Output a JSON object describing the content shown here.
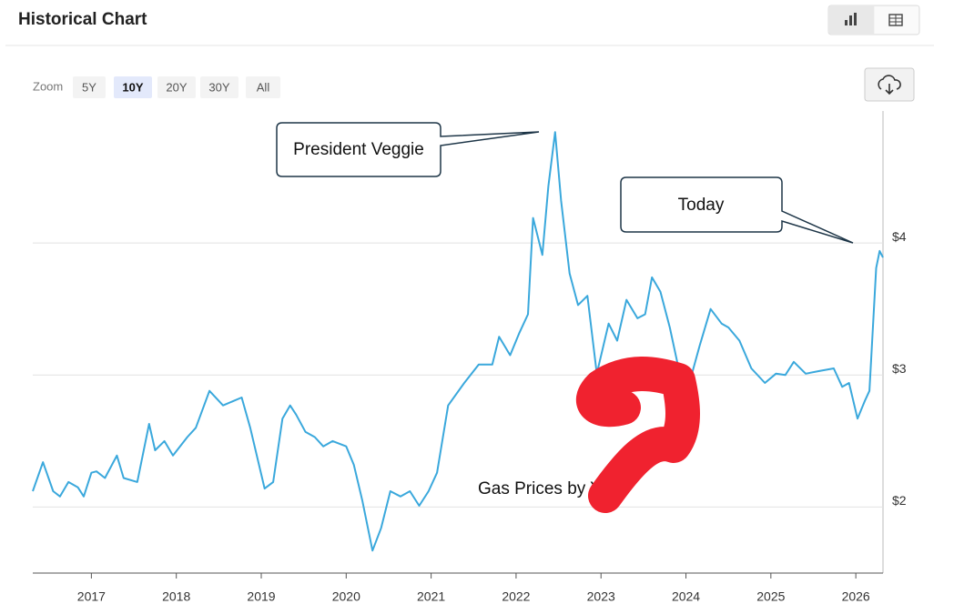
{
  "header": {
    "title": "Historical Chart"
  },
  "zoom": {
    "label": "Zoom",
    "options": [
      "5Y",
      "10Y",
      "20Y",
      "30Y",
      "All"
    ],
    "selected": "10Y"
  },
  "chart_data": {
    "type": "line",
    "annotations": [
      "President Veggie",
      "Today",
      "Gas Prices by Year"
    ],
    "x": [
      2016.31,
      2016.43,
      2016.55,
      2016.63,
      2016.73,
      2016.84,
      2016.91,
      2017.0,
      2017.06,
      2017.16,
      2017.3,
      2017.38,
      2017.54,
      2017.68,
      2017.75,
      2017.86,
      2017.96,
      2018.13,
      2018.23,
      2018.39,
      2018.55,
      2018.77,
      2018.87,
      2019.04,
      2019.14,
      2019.25,
      2019.34,
      2019.41,
      2019.52,
      2019.63,
      2019.73,
      2019.84,
      2020.0,
      2020.09,
      2020.19,
      2020.31,
      2020.41,
      2020.52,
      2020.64,
      2020.75,
      2020.86,
      2020.97,
      2021.07,
      2021.2,
      2021.39,
      2021.56,
      2021.72,
      2021.8,
      2021.93,
      2022.04,
      2022.14,
      2022.2,
      2022.31,
      2022.38,
      2022.46,
      2022.53,
      2022.63,
      2022.73,
      2022.84,
      2022.95,
      2023.09,
      2023.19,
      2023.3,
      2023.43,
      2023.52,
      2023.6,
      2023.7,
      2023.81,
      2023.95,
      2024.04,
      2024.16,
      2024.29,
      2024.42,
      2024.5,
      2024.63,
      2024.77,
      2024.93,
      2025.06,
      2025.17,
      2025.27,
      2025.41,
      2025.57,
      2025.74,
      2025.84,
      2025.92,
      2026.02,
      2026.11,
      2026.16,
      2026.24,
      2026.28,
      2026.32
    ],
    "series": [
      {
        "name": "Gas price",
        "color": "#3aa8dc",
        "values": [
          2.12,
          2.34,
          2.12,
          2.08,
          2.19,
          2.15,
          2.08,
          2.26,
          2.27,
          2.22,
          2.39,
          2.22,
          2.19,
          2.63,
          2.43,
          2.5,
          2.39,
          2.53,
          2.6,
          2.88,
          2.77,
          2.83,
          2.6,
          2.14,
          2.19,
          2.67,
          2.77,
          2.7,
          2.57,
          2.53,
          2.46,
          2.5,
          2.46,
          2.32,
          2.05,
          1.67,
          1.84,
          2.12,
          2.08,
          2.12,
          2.01,
          2.12,
          2.26,
          2.77,
          2.94,
          3.08,
          3.08,
          3.29,
          3.15,
          3.32,
          3.46,
          4.19,
          3.91,
          4.43,
          4.84,
          4.32,
          3.77,
          3.53,
          3.6,
          3.01,
          3.39,
          3.26,
          3.57,
          3.43,
          3.46,
          3.74,
          3.63,
          3.36,
          2.94,
          2.94,
          3.22,
          3.5,
          3.39,
          3.36,
          3.26,
          3.05,
          2.94,
          3.01,
          3.0,
          3.1,
          3.01,
          3.03,
          3.05,
          2.91,
          2.94,
          2.67,
          2.81,
          2.88,
          3.81,
          3.94,
          3.89
        ]
      }
    ],
    "xlim": [
      2016.31,
      2026.32
    ],
    "xticks": [
      2017,
      2018,
      2019,
      2020,
      2021,
      2022,
      2023,
      2024,
      2025,
      2026
    ],
    "ylim": [
      1.5,
      5.0
    ],
    "yticks": [
      {
        "value": 2,
        "label": "$2"
      },
      {
        "value": 3,
        "label": "$3"
      },
      {
        "value": 4,
        "label": "$4"
      }
    ],
    "grid": true
  }
}
